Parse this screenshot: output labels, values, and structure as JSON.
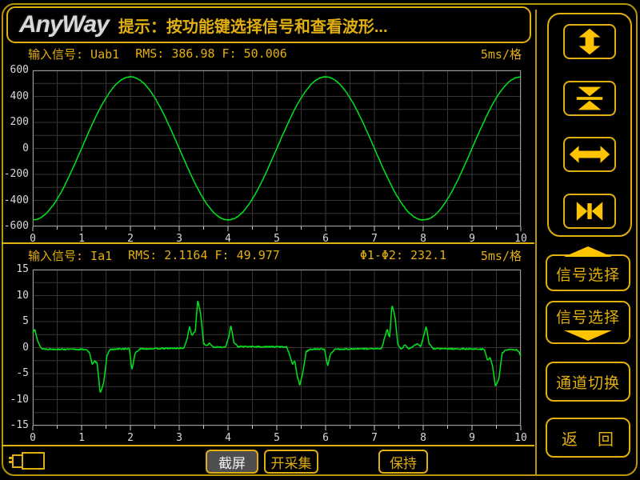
{
  "titlebar": {
    "logo": "AnyWay",
    "message": "提示：按功能键选择信号和查看波形..."
  },
  "colors": {
    "accent": "#e2af10",
    "accent_bright": "#ffc400",
    "frame": "#b8950a",
    "waveform": "#00e41c",
    "grid": "#373737",
    "plot_border": "#9a9a9a",
    "tick_text": "#d9d9d9",
    "screenshot_bg": "#4e4e4e",
    "screenshot_text": "#f2f2f2",
    "logo_silver": "#d9d9d9"
  },
  "chart_data": [
    {
      "type": "line",
      "name": "voltage-waveform",
      "header": {
        "signal": "输入信号: Uab1",
        "meas": "RMS: 386.98 F: 50.006",
        "timebase": "5ms/格"
      },
      "x": {
        "min": 0,
        "max": 10,
        "minor_step": 0.5,
        "ticks": [
          0,
          1,
          2,
          3,
          4,
          5,
          6,
          7,
          8,
          9,
          10
        ]
      },
      "y": {
        "min": -600,
        "max": 600,
        "minor_step": 100,
        "ticks": [
          600,
          400,
          200,
          0,
          -200,
          -400,
          -600
        ]
      },
      "grid": true,
      "series": [
        {
          "name": "Uab1",
          "kind": "sine",
          "amplitude": 550,
          "period": 4,
          "phase_deg": 180,
          "offset": 0,
          "noise": 2.5,
          "seed": 7
        }
      ]
    },
    {
      "type": "line",
      "name": "current-waveform",
      "header": {
        "signal": "输入信号: Ia1",
        "meas": "RMS: 2.1164 F: 49.977",
        "phase": "Φ1-Φ2: 232.1",
        "timebase": "5ms/格"
      },
      "x": {
        "min": 0,
        "max": 10,
        "minor_step": 0.5,
        "ticks": [
          0,
          1,
          2,
          3,
          4,
          5,
          6,
          7,
          8,
          9,
          10
        ]
      },
      "y": {
        "min": -15,
        "max": 15,
        "minor_step": 2.5,
        "ticks": [
          15,
          10,
          5,
          0,
          -5,
          -10,
          -15
        ]
      },
      "grid": true,
      "series": [
        {
          "name": "Ia1",
          "kind": "keypoints",
          "noise": 0.12,
          "seed": 13,
          "points": [
            [
              0,
              2.8
            ],
            [
              0.04,
              3.7
            ],
            [
              0.1,
              1.2
            ],
            [
              0.18,
              -0.2
            ],
            [
              0.3,
              -0.3
            ],
            [
              1.1,
              -0.35
            ],
            [
              1.17,
              -1.2
            ],
            [
              1.22,
              -3.3
            ],
            [
              1.27,
              -2.6
            ],
            [
              1.32,
              -3
            ],
            [
              1.38,
              -8.7
            ],
            [
              1.45,
              -7
            ],
            [
              1.52,
              -1.5
            ],
            [
              1.58,
              -0.4
            ],
            [
              1.8,
              -0.25
            ],
            [
              1.98,
              -0.25
            ],
            [
              2.03,
              -4.3
            ],
            [
              2.1,
              -1
            ],
            [
              2.2,
              -0.25
            ],
            [
              3.1,
              -0.1
            ],
            [
              3.17,
              2
            ],
            [
              3.21,
              4
            ],
            [
              3.26,
              2.4
            ],
            [
              3.33,
              3.2
            ],
            [
              3.38,
              9.2
            ],
            [
              3.44,
              6.5
            ],
            [
              3.5,
              0.8
            ],
            [
              3.56,
              0.3
            ],
            [
              3.62,
              0.9
            ],
            [
              3.7,
              0.1
            ],
            [
              3.95,
              0.1
            ],
            [
              4.02,
              2.2
            ],
            [
              4.06,
              4.4
            ],
            [
              4.12,
              1
            ],
            [
              4.2,
              0.2
            ],
            [
              5.2,
              0.15
            ],
            [
              5.27,
              -1.5
            ],
            [
              5.32,
              -3.2
            ],
            [
              5.37,
              -2.6
            ],
            [
              5.42,
              -5.5
            ],
            [
              5.47,
              -7.2
            ],
            [
              5.53,
              -5
            ],
            [
              5.6,
              -0.8
            ],
            [
              5.7,
              -0.3
            ],
            [
              5.98,
              -0.3
            ],
            [
              6.04,
              -3.6
            ],
            [
              6.1,
              -1.2
            ],
            [
              6.2,
              -0.3
            ],
            [
              7.15,
              -0.2
            ],
            [
              7.22,
              2.2
            ],
            [
              7.26,
              3.6
            ],
            [
              7.31,
              1.8
            ],
            [
              7.36,
              8.2
            ],
            [
              7.42,
              6
            ],
            [
              7.48,
              0.6
            ],
            [
              7.55,
              -0.4
            ],
            [
              7.62,
              0.6
            ],
            [
              7.7,
              -0.3
            ],
            [
              7.88,
              0.8
            ],
            [
              7.95,
              0.2
            ],
            [
              8.02,
              2.5
            ],
            [
              8.06,
              4.2
            ],
            [
              8.12,
              0.8
            ],
            [
              8.2,
              -0.2
            ],
            [
              9.25,
              -0.3
            ],
            [
              9.32,
              -2.5
            ],
            [
              9.37,
              -1.8
            ],
            [
              9.42,
              -3.5
            ],
            [
              9.48,
              -7.5
            ],
            [
              9.55,
              -6
            ],
            [
              9.62,
              -1
            ],
            [
              9.7,
              -0.4
            ],
            [
              9.92,
              -0.4
            ],
            [
              9.97,
              -1
            ],
            [
              10,
              -1.6
            ]
          ]
        }
      ]
    }
  ],
  "right_panel": {
    "signal_select_up": "信号选择",
    "signal_select_down": "信号选择",
    "channel_switch": "通道切换",
    "return_left": "返",
    "return_right": "回"
  },
  "bottom_bar": {
    "screenshot": "截屏",
    "acquire": "开采集",
    "hold": "保持"
  }
}
